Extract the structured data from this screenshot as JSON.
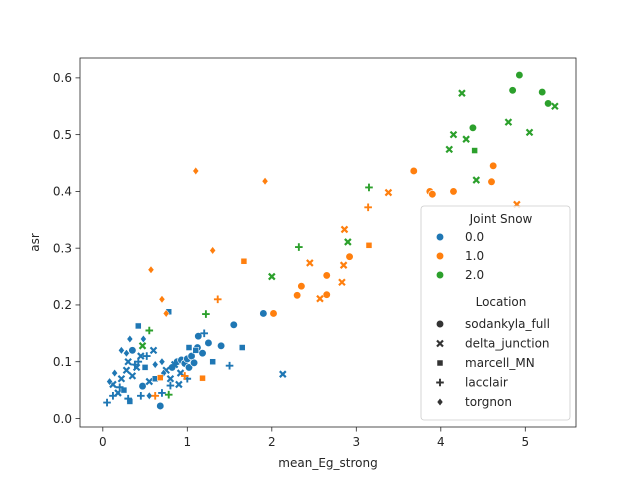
{
  "chart_data": {
    "type": "scatter",
    "title": "",
    "xlabel": "mean_Eg_strong",
    "ylabel": "asr",
    "xlim": [
      -0.27,
      5.6
    ],
    "ylim": [
      -0.015,
      0.635
    ],
    "xticks": [
      0,
      1,
      2,
      3,
      4,
      5
    ],
    "xtick_labels": [
      "0",
      "1",
      "2",
      "3",
      "4",
      "5"
    ],
    "yticks": [
      0.0,
      0.1,
      0.2,
      0.3,
      0.4,
      0.5,
      0.6
    ],
    "ytick_labels": [
      "0.0",
      "0.1",
      "0.2",
      "0.3",
      "0.4",
      "0.5",
      "0.6"
    ],
    "grid": false,
    "legend": {
      "placement": "lower-right",
      "hue_title": "Joint Snow",
      "hue_entries": [
        {
          "label": "0.0",
          "color": "#1f77b4"
        },
        {
          "label": "1.0",
          "color": "#ff7f0e"
        },
        {
          "label": "2.0",
          "color": "#2ca02c"
        }
      ],
      "style_title": "Location",
      "style_entries": [
        {
          "label": "sodankyla_full",
          "marker": "circle"
        },
        {
          "label": "delta_junction",
          "marker": "x"
        },
        {
          "label": "marcell_MN",
          "marker": "square"
        },
        {
          "label": "lacclair",
          "marker": "plus"
        },
        {
          "label": "torgnon",
          "marker": "diamond"
        }
      ]
    },
    "series": [
      {
        "color": "#1f77b4",
        "points": [
          {
            "x": 0.35,
            "y": 0.12,
            "m": "circle"
          },
          {
            "x": 0.47,
            "y": 0.057,
            "m": "circle"
          },
          {
            "x": 0.68,
            "y": 0.022,
            "m": "circle"
          },
          {
            "x": 0.82,
            "y": 0.09,
            "m": "circle"
          },
          {
            "x": 0.88,
            "y": 0.1,
            "m": "circle"
          },
          {
            "x": 0.93,
            "y": 0.103,
            "m": "circle"
          },
          {
            "x": 0.97,
            "y": 0.097,
            "m": "circle"
          },
          {
            "x": 1.0,
            "y": 0.105,
            "m": "circle"
          },
          {
            "x": 1.02,
            "y": 0.09,
            "m": "circle"
          },
          {
            "x": 1.05,
            "y": 0.11,
            "m": "circle"
          },
          {
            "x": 1.08,
            "y": 0.098,
            "m": "circle"
          },
          {
            "x": 1.12,
            "y": 0.125,
            "m": "circle"
          },
          {
            "x": 1.13,
            "y": 0.145,
            "m": "circle"
          },
          {
            "x": 1.18,
            "y": 0.115,
            "m": "circle"
          },
          {
            "x": 1.25,
            "y": 0.133,
            "m": "circle"
          },
          {
            "x": 1.4,
            "y": 0.128,
            "m": "circle"
          },
          {
            "x": 1.55,
            "y": 0.165,
            "m": "circle"
          },
          {
            "x": 1.9,
            "y": 0.185,
            "m": "circle"
          },
          {
            "x": 0.12,
            "y": 0.06,
            "m": "x"
          },
          {
            "x": 0.18,
            "y": 0.045,
            "m": "x"
          },
          {
            "x": 0.22,
            "y": 0.07,
            "m": "x"
          },
          {
            "x": 0.28,
            "y": 0.085,
            "m": "x"
          },
          {
            "x": 0.3,
            "y": 0.1,
            "m": "x"
          },
          {
            "x": 0.35,
            "y": 0.075,
            "m": "x"
          },
          {
            "x": 0.4,
            "y": 0.09,
            "m": "x"
          },
          {
            "x": 0.45,
            "y": 0.11,
            "m": "x"
          },
          {
            "x": 0.55,
            "y": 0.065,
            "m": "x"
          },
          {
            "x": 0.6,
            "y": 0.12,
            "m": "x"
          },
          {
            "x": 0.75,
            "y": 0.085,
            "m": "x"
          },
          {
            "x": 0.8,
            "y": 0.07,
            "m": "x"
          },
          {
            "x": 0.85,
            "y": 0.095,
            "m": "x"
          },
          {
            "x": 0.9,
            "y": 0.06,
            "m": "x"
          },
          {
            "x": 0.92,
            "y": 0.08,
            "m": "x"
          },
          {
            "x": 2.13,
            "y": 0.078,
            "m": "x"
          },
          {
            "x": 0.25,
            "y": 0.05,
            "m": "square"
          },
          {
            "x": 0.32,
            "y": 0.03,
            "m": "square"
          },
          {
            "x": 0.42,
            "y": 0.163,
            "m": "square"
          },
          {
            "x": 0.5,
            "y": 0.09,
            "m": "square"
          },
          {
            "x": 0.62,
            "y": 0.07,
            "m": "square"
          },
          {
            "x": 0.78,
            "y": 0.188,
            "m": "square"
          },
          {
            "x": 1.02,
            "y": 0.125,
            "m": "square"
          },
          {
            "x": 1.1,
            "y": 0.12,
            "m": "square"
          },
          {
            "x": 1.3,
            "y": 0.1,
            "m": "square"
          },
          {
            "x": 1.65,
            "y": 0.125,
            "m": "square"
          },
          {
            "x": 0.05,
            "y": 0.028,
            "m": "plus"
          },
          {
            "x": 0.12,
            "y": 0.04,
            "m": "plus"
          },
          {
            "x": 0.2,
            "y": 0.055,
            "m": "plus"
          },
          {
            "x": 0.3,
            "y": 0.035,
            "m": "plus"
          },
          {
            "x": 0.38,
            "y": 0.095,
            "m": "plus"
          },
          {
            "x": 0.42,
            "y": 0.1,
            "m": "plus"
          },
          {
            "x": 0.45,
            "y": 0.04,
            "m": "plus"
          },
          {
            "x": 0.52,
            "y": 0.11,
            "m": "plus"
          },
          {
            "x": 0.7,
            "y": 0.045,
            "m": "plus"
          },
          {
            "x": 0.8,
            "y": 0.058,
            "m": "plus"
          },
          {
            "x": 1.0,
            "y": 0.07,
            "m": "plus"
          },
          {
            "x": 1.2,
            "y": 0.15,
            "m": "plus"
          },
          {
            "x": 1.5,
            "y": 0.093,
            "m": "plus"
          },
          {
            "x": 0.08,
            "y": 0.065,
            "m": "diamond"
          },
          {
            "x": 0.14,
            "y": 0.08,
            "m": "diamond"
          },
          {
            "x": 0.22,
            "y": 0.12,
            "m": "diamond"
          },
          {
            "x": 0.28,
            "y": 0.115,
            "m": "diamond"
          },
          {
            "x": 0.32,
            "y": 0.14,
            "m": "diamond"
          },
          {
            "x": 0.48,
            "y": 0.14,
            "m": "diamond"
          },
          {
            "x": 0.55,
            "y": 0.04,
            "m": "diamond"
          },
          {
            "x": 0.62,
            "y": 0.095,
            "m": "diamond"
          },
          {
            "x": 0.7,
            "y": 0.1,
            "m": "diamond"
          },
          {
            "x": 0.72,
            "y": 0.08,
            "m": "diamond"
          }
        ]
      },
      {
        "color": "#ff7f0e",
        "points": [
          {
            "x": 2.3,
            "y": 0.217,
            "m": "circle"
          },
          {
            "x": 2.35,
            "y": 0.233,
            "m": "circle"
          },
          {
            "x": 2.65,
            "y": 0.218,
            "m": "circle"
          },
          {
            "x": 2.65,
            "y": 0.252,
            "m": "circle"
          },
          {
            "x": 2.92,
            "y": 0.285,
            "m": "circle"
          },
          {
            "x": 3.68,
            "y": 0.436,
            "m": "circle"
          },
          {
            "x": 3.87,
            "y": 0.4,
            "m": "circle"
          },
          {
            "x": 3.9,
            "y": 0.395,
            "m": "circle"
          },
          {
            "x": 4.15,
            "y": 0.4,
            "m": "circle"
          },
          {
            "x": 4.6,
            "y": 0.417,
            "m": "circle"
          },
          {
            "x": 4.62,
            "y": 0.445,
            "m": "circle"
          },
          {
            "x": 2.02,
            "y": 0.185,
            "m": "circle"
          },
          {
            "x": 2.57,
            "y": 0.211,
            "m": "x"
          },
          {
            "x": 2.45,
            "y": 0.274,
            "m": "x"
          },
          {
            "x": 2.85,
            "y": 0.27,
            "m": "x"
          },
          {
            "x": 2.83,
            "y": 0.24,
            "m": "x"
          },
          {
            "x": 2.86,
            "y": 0.333,
            "m": "x"
          },
          {
            "x": 3.38,
            "y": 0.398,
            "m": "x"
          },
          {
            "x": 4.9,
            "y": 0.377,
            "m": "x"
          },
          {
            "x": 0.68,
            "y": 0.072,
            "m": "square"
          },
          {
            "x": 1.18,
            "y": 0.071,
            "m": "square"
          },
          {
            "x": 1.67,
            "y": 0.277,
            "m": "square"
          },
          {
            "x": 3.15,
            "y": 0.305,
            "m": "square"
          },
          {
            "x": 0.62,
            "y": 0.04,
            "m": "plus"
          },
          {
            "x": 0.97,
            "y": 0.075,
            "m": "plus"
          },
          {
            "x": 1.36,
            "y": 0.21,
            "m": "plus"
          },
          {
            "x": 3.14,
            "y": 0.372,
            "m": "plus"
          },
          {
            "x": 0.57,
            "y": 0.262,
            "m": "diamond"
          },
          {
            "x": 0.7,
            "y": 0.21,
            "m": "diamond"
          },
          {
            "x": 0.75,
            "y": 0.185,
            "m": "diamond"
          },
          {
            "x": 1.1,
            "y": 0.436,
            "m": "diamond"
          },
          {
            "x": 1.3,
            "y": 0.296,
            "m": "diamond"
          },
          {
            "x": 1.92,
            "y": 0.418,
            "m": "diamond"
          }
        ]
      },
      {
        "color": "#2ca02c",
        "points": [
          {
            "x": 4.38,
            "y": 0.512,
            "m": "circle"
          },
          {
            "x": 4.85,
            "y": 0.578,
            "m": "circle"
          },
          {
            "x": 4.93,
            "y": 0.605,
            "m": "circle"
          },
          {
            "x": 5.2,
            "y": 0.575,
            "m": "circle"
          },
          {
            "x": 5.27,
            "y": 0.555,
            "m": "circle"
          },
          {
            "x": 0.47,
            "y": 0.128,
            "m": "x"
          },
          {
            "x": 2.0,
            "y": 0.25,
            "m": "x"
          },
          {
            "x": 2.9,
            "y": 0.311,
            "m": "x"
          },
          {
            "x": 4.1,
            "y": 0.474,
            "m": "x"
          },
          {
            "x": 4.15,
            "y": 0.5,
            "m": "x"
          },
          {
            "x": 4.25,
            "y": 0.573,
            "m": "x"
          },
          {
            "x": 4.3,
            "y": 0.492,
            "m": "x"
          },
          {
            "x": 4.42,
            "y": 0.42,
            "m": "x"
          },
          {
            "x": 4.8,
            "y": 0.522,
            "m": "x"
          },
          {
            "x": 5.05,
            "y": 0.504,
            "m": "x"
          },
          {
            "x": 5.35,
            "y": 0.55,
            "m": "x"
          },
          {
            "x": 4.4,
            "y": 0.472,
            "m": "square"
          },
          {
            "x": 0.55,
            "y": 0.155,
            "m": "plus"
          },
          {
            "x": 0.78,
            "y": 0.042,
            "m": "plus"
          },
          {
            "x": 1.22,
            "y": 0.184,
            "m": "plus"
          },
          {
            "x": 2.32,
            "y": 0.302,
            "m": "plus"
          },
          {
            "x": 3.15,
            "y": 0.407,
            "m": "plus"
          }
        ]
      }
    ]
  }
}
